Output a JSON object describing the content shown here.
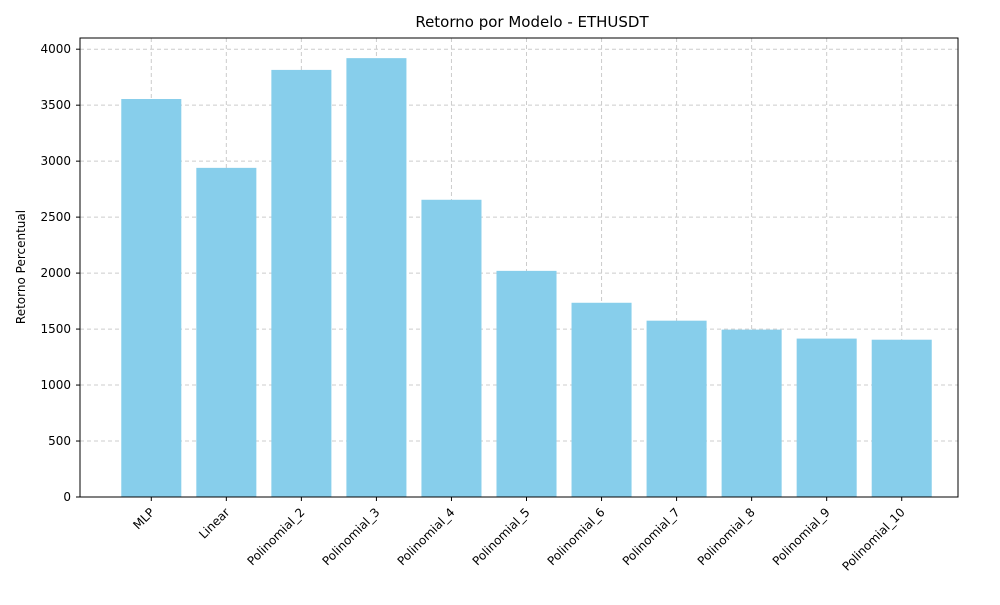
{
  "chart_data": {
    "type": "bar",
    "title": "Retorno por Modelo - ETHUSDT",
    "xlabel": "",
    "ylabel": "Retorno Percentual",
    "categories": [
      "MLP",
      "Linear",
      "Polinomial_2",
      "Polinomial_3",
      "Polinomial_4",
      "Polinomial_5",
      "Polinomial_6",
      "Polinomial_7",
      "Polinomial_8",
      "Polinomial_9",
      "Polinomial_10"
    ],
    "values": [
      3555,
      2940,
      3815,
      3920,
      2655,
      2020,
      1735,
      1575,
      1495,
      1415,
      1405
    ],
    "ylim": [
      0,
      4100
    ],
    "yticks": [
      0,
      500,
      1000,
      1500,
      2000,
      2500,
      3000,
      3500,
      4000
    ],
    "bar_color": "#87ceeb",
    "grid": true,
    "grid_color": "#cccccc",
    "x_tick_rotation": "45 degrees"
  }
}
